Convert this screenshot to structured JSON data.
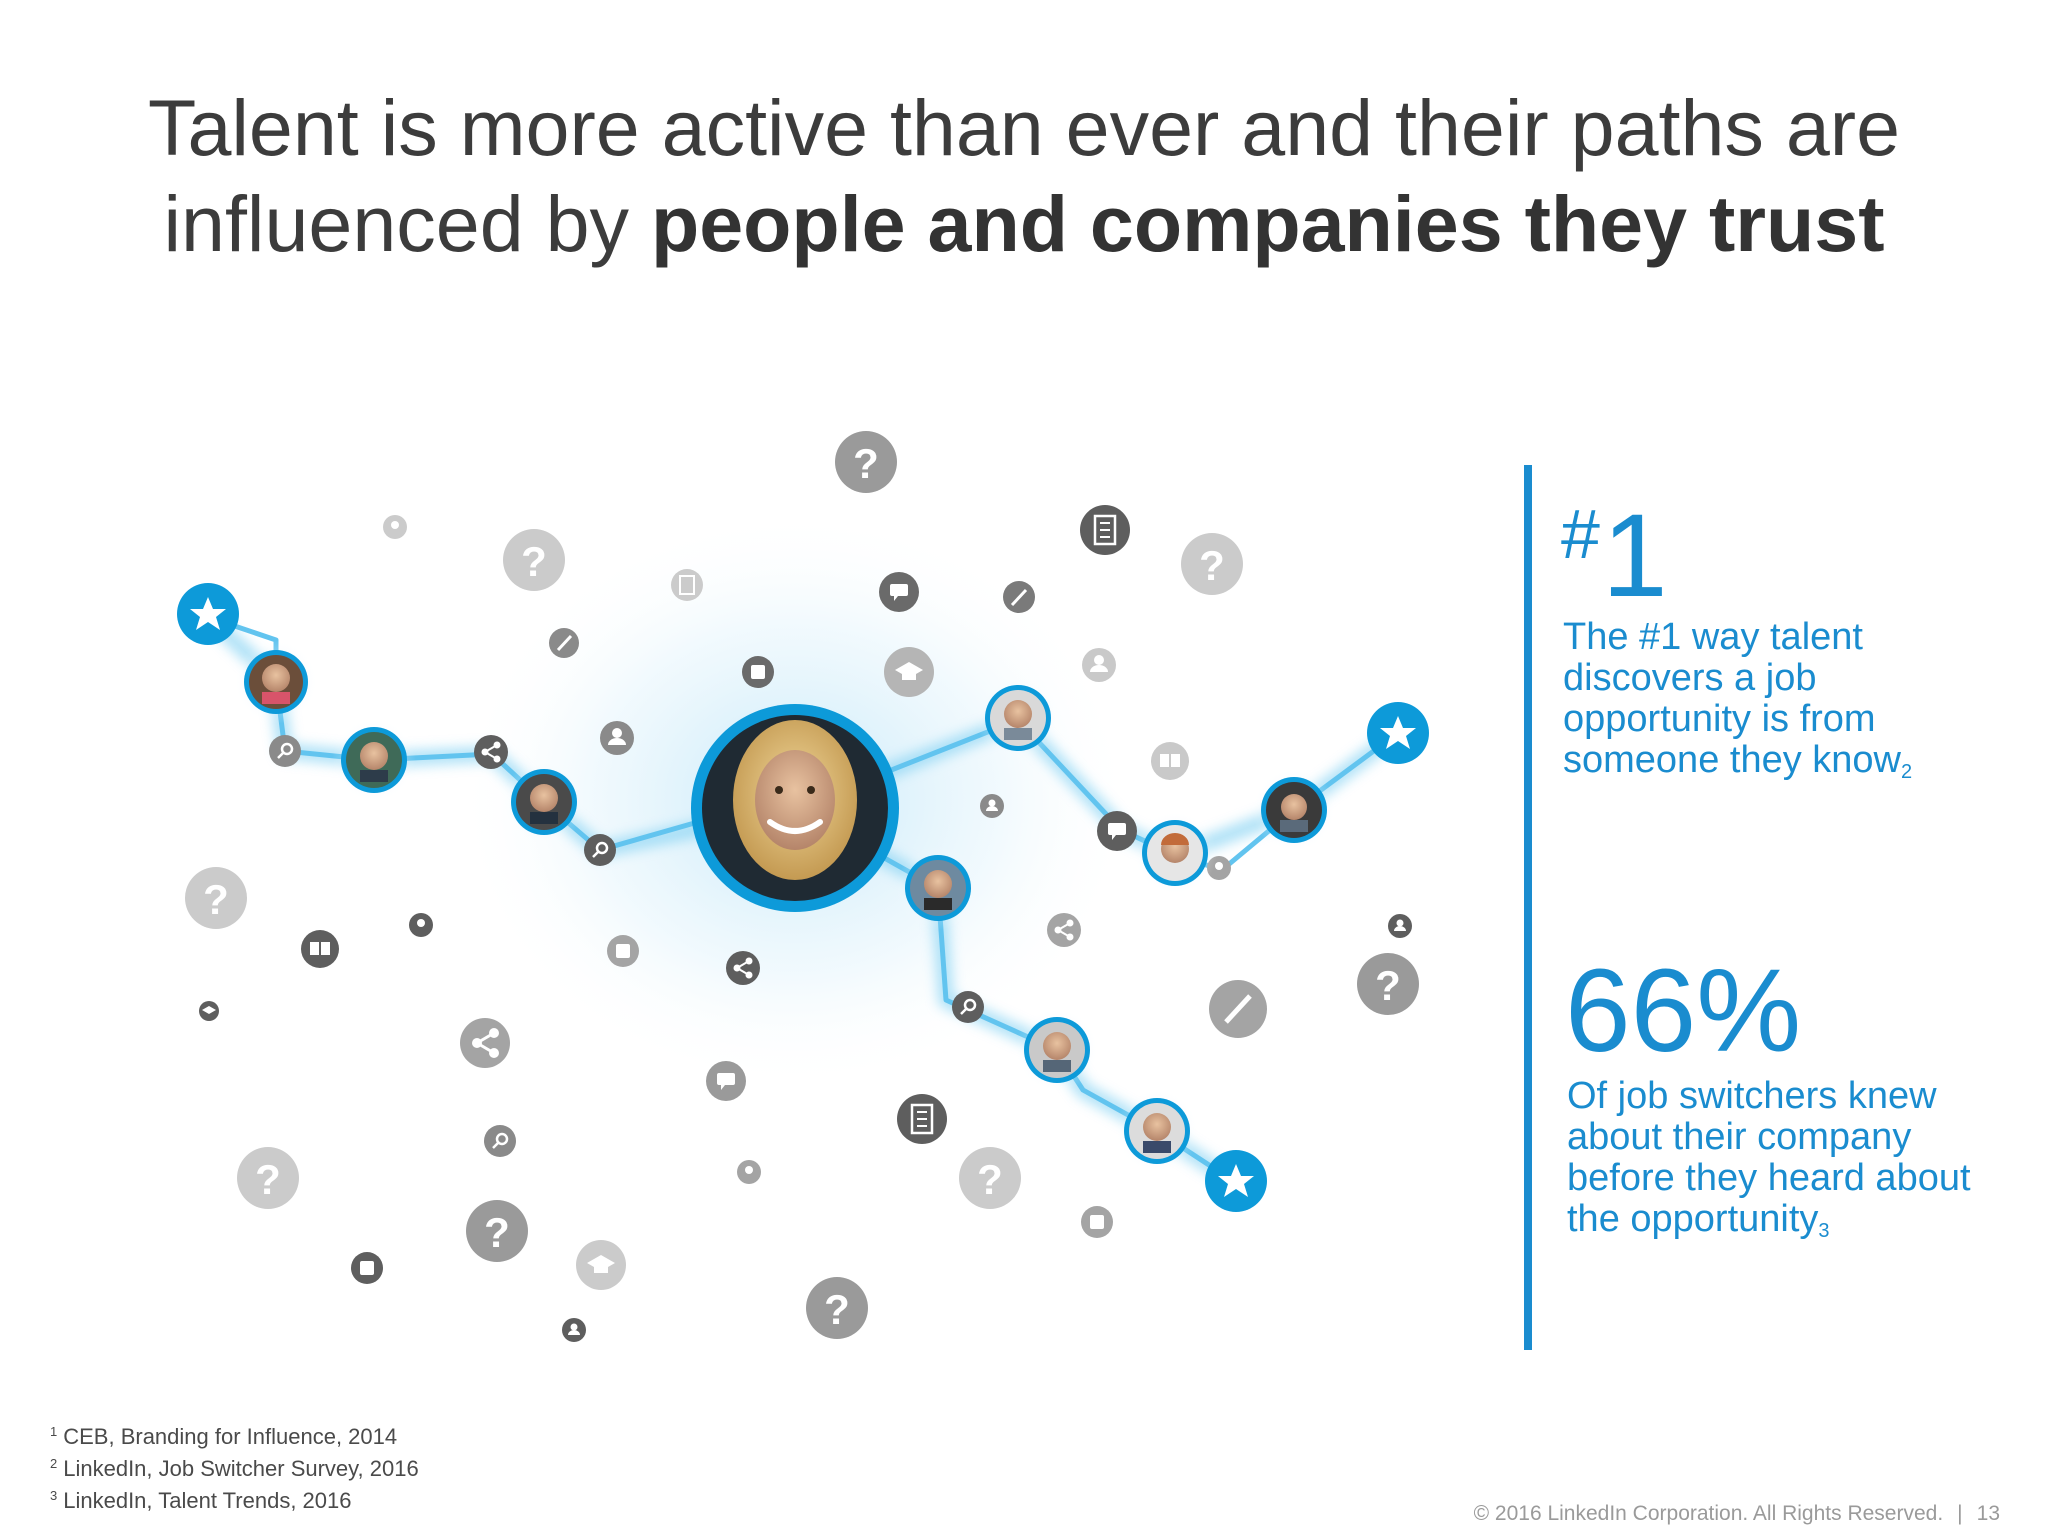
{
  "title": {
    "line1": "Talent is more active than ever and their paths are",
    "line2_plain": "influenced by ",
    "line2_bold": "people and companies they trust"
  },
  "stat1": {
    "hash": "#",
    "number": "1",
    "text": "The #1 way talent discovers a job opportunity is from someone they know",
    "ref": "2"
  },
  "stat2": {
    "number": "66%",
    "text": "Of job switchers knew about their company before they heard about the opportunity",
    "ref": "3"
  },
  "footnotes": [
    {
      "num": "1",
      "text": "CEB, Branding for Influence, 2014"
    },
    {
      "num": "2",
      "text": "LinkedIn, Job Switcher Survey, 2016"
    },
    {
      "num": "3",
      "text": "LinkedIn, Talent Trends, 2016"
    }
  ],
  "footer": {
    "copyright": "© 2016 LinkedIn Corporation. All Rights Reserved.",
    "separator": "|",
    "page_number": "13"
  },
  "colors": {
    "accent": "#1a8ccf",
    "node_blue": "#0d9ad9",
    "path_line": "#5cc3ee",
    "icon_dark": "#5e5e5e",
    "icon_mid": "#9a9a9a",
    "icon_light": "#c9c9c9"
  },
  "icons": [
    "question-icon",
    "building-icon",
    "chat-icon",
    "pencil-icon",
    "person-icon",
    "share-icon",
    "search-icon",
    "book-icon",
    "graduation-cap-icon",
    "briefcase-icon",
    "award-icon",
    "star-badge-icon"
  ]
}
